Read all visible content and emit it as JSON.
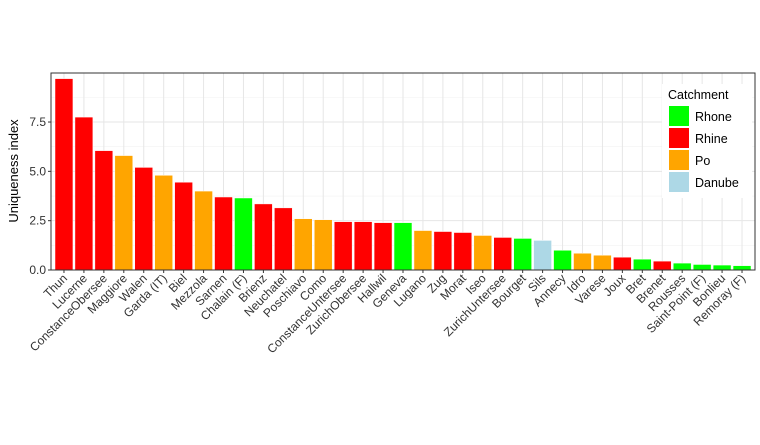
{
  "chart_data": {
    "type": "bar",
    "title": "",
    "xlabel": "",
    "ylabel": "Uniqueness index",
    "ylim": [
      0,
      10
    ],
    "yticks": [
      "0.0",
      "2.5",
      "5.0",
      "7.5"
    ],
    "ytick_values": [
      0,
      2.5,
      5,
      7.5
    ],
    "grid": true,
    "legend": {
      "title": "Catchment",
      "placement": "top-right",
      "entries": [
        {
          "name": "Rhone",
          "color": "#00ff00"
        },
        {
          "name": "Rhine",
          "color": "#ff0000"
        },
        {
          "name": "Po",
          "color": "#ffa500"
        },
        {
          "name": "Danube",
          "color": "#add8e6"
        }
      ]
    },
    "categories": [
      "Thun",
      "Lucerne",
      "ConstanceObersee",
      "Maggiore",
      "Walen",
      "Garda (IT)",
      "Biel",
      "Mezzola",
      "Sarnen",
      "Chalain (F)",
      "Brienz",
      "Neuchatel",
      "Poschiavo",
      "Como",
      "ConstanceUntersee",
      "ZurichObersee",
      "Hallwil",
      "Geneva",
      "Lugano",
      "Zug",
      "Morat",
      "Iseo",
      "ZurichUntersee",
      "Bourget",
      "Sils",
      "Annecy",
      "Idro",
      "Varese",
      "Joux",
      "Bret",
      "Brenet",
      "Rousses",
      "Saint-Point (F)",
      "Bonlieu",
      "Remoray (F)"
    ],
    "values": [
      9.7,
      7.75,
      6.05,
      5.8,
      5.2,
      4.8,
      4.45,
      4.0,
      3.7,
      3.65,
      3.35,
      3.15,
      2.6,
      2.55,
      2.45,
      2.45,
      2.4,
      2.4,
      2.0,
      1.95,
      1.9,
      1.75,
      1.65,
      1.6,
      1.5,
      1.0,
      0.85,
      0.75,
      0.65,
      0.55,
      0.45,
      0.35,
      0.28,
      0.25,
      0.22
    ],
    "catchment": [
      "Rhine",
      "Rhine",
      "Rhine",
      "Po",
      "Rhine",
      "Po",
      "Rhine",
      "Po",
      "Rhine",
      "Rhone",
      "Rhine",
      "Rhine",
      "Po",
      "Po",
      "Rhine",
      "Rhine",
      "Rhine",
      "Rhone",
      "Po",
      "Rhine",
      "Rhine",
      "Po",
      "Rhine",
      "Rhone",
      "Danube",
      "Rhone",
      "Po",
      "Po",
      "Rhine",
      "Rhone",
      "Rhine",
      "Rhone",
      "Rhone",
      "Rhone",
      "Rhone"
    ]
  }
}
